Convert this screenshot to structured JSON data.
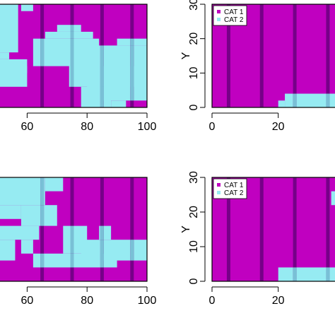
{
  "colors": {
    "cat1": "#c000c0",
    "cat2": "#96ebf2",
    "stripe_on_cat1": "#760088",
    "stripe_on_cat2": "#79c0d6"
  },
  "chart_data": [
    {
      "type": "heatmap",
      "panel": "top-left",
      "xlim": [
        50,
        100
      ],
      "ylim": [
        0,
        30
      ],
      "xticks": [
        60,
        80,
        100
      ],
      "xtick_labels": [
        "60",
        "80",
        "100"
      ],
      "categories": [
        "CAT 1",
        "CAT 2"
      ],
      "stripes_x": [
        65,
        75,
        85,
        95
      ],
      "cat2_regions": [
        {
          "x": [
            50,
            57
          ],
          "y": [
            16,
            30
          ]
        },
        {
          "x": [
            50,
            54
          ],
          "y": [
            14,
            16
          ]
        },
        {
          "x": [
            50,
            60
          ],
          "y": [
            6,
            14
          ]
        },
        {
          "x": [
            50,
            57
          ],
          "y": [
            16,
            16
          ]
        },
        {
          "x": [
            57,
            60
          ],
          "y": [
            10,
            12
          ]
        },
        {
          "x": [
            62,
            84
          ],
          "y": [
            12,
            20
          ]
        },
        {
          "x": [
            66,
            82
          ],
          "y": [
            20,
            22
          ]
        },
        {
          "x": [
            70,
            78
          ],
          "y": [
            22,
            24
          ]
        },
        {
          "x": [
            74,
            100
          ],
          "y": [
            6,
            18
          ]
        },
        {
          "x": [
            80,
            100
          ],
          "y": [
            2,
            12
          ]
        },
        {
          "x": [
            78,
            88
          ],
          "y": [
            0,
            6
          ]
        },
        {
          "x": [
            88,
            93
          ],
          "y": [
            0,
            2
          ]
        },
        {
          "x": [
            90,
            100
          ],
          "y": [
            18,
            20
          ]
        },
        {
          "x": [
            58,
            62
          ],
          "y": [
            28,
            30
          ]
        }
      ]
    },
    {
      "type": "heatmap",
      "panel": "top-right",
      "xlim": [
        0,
        38
      ],
      "ylim": [
        0,
        30
      ],
      "xticks": [
        0,
        20
      ],
      "xtick_labels": [
        "0",
        "20"
      ],
      "yticks": [
        0,
        10,
        20,
        30
      ],
      "ytick_labels": [
        "0",
        "10",
        "20",
        "30"
      ],
      "ylabel": "Y",
      "legend": {
        "position": "top-left",
        "entries": [
          "CAT 1",
          "CAT 2"
        ]
      },
      "stripes_x": [
        5,
        15,
        25,
        35
      ],
      "cat2_regions": [
        {
          "x": [
            22,
            38
          ],
          "y": [
            0,
            4
          ]
        },
        {
          "x": [
            20,
            22
          ],
          "y": [
            0,
            2
          ]
        }
      ]
    },
    {
      "type": "heatmap",
      "panel": "bottom-left",
      "xlim": [
        50,
        100
      ],
      "ylim": [
        0,
        30
      ],
      "xticks": [
        60,
        80,
        100
      ],
      "xtick_labels": [
        "60",
        "80",
        "100"
      ],
      "categories": [
        "CAT 1",
        "CAT 2"
      ],
      "stripes_x": [
        65,
        75,
        85,
        95
      ],
      "cat2_regions": [
        {
          "x": [
            50,
            66
          ],
          "y": [
            22,
            30
          ]
        },
        {
          "x": [
            50,
            58
          ],
          "y": [
            18,
            22
          ]
        },
        {
          "x": [
            50,
            64
          ],
          "y": [
            12,
            16
          ]
        },
        {
          "x": [
            50,
            56
          ],
          "y": [
            6,
            12
          ]
        },
        {
          "x": [
            58,
            70
          ],
          "y": [
            16,
            22
          ]
        },
        {
          "x": [
            66,
            72
          ],
          "y": [
            26,
            30
          ]
        },
        {
          "x": [
            72,
            80
          ],
          "y": [
            8,
            16
          ]
        },
        {
          "x": [
            78,
            100
          ],
          "y": [
            6,
            12
          ]
        },
        {
          "x": [
            62,
            90
          ],
          "y": [
            4,
            8
          ]
        },
        {
          "x": [
            84,
            88
          ],
          "y": [
            12,
            16
          ]
        },
        {
          "x": [
            58,
            62
          ],
          "y": [
            8,
            12
          ]
        }
      ]
    },
    {
      "type": "heatmap",
      "panel": "bottom-right",
      "xlim": [
        0,
        38
      ],
      "ylim": [
        0,
        30
      ],
      "xticks": [
        0,
        20
      ],
      "xtick_labels": [
        "0",
        "20"
      ],
      "yticks": [
        0,
        10,
        20,
        30
      ],
      "ytick_labels": [
        "0",
        "10",
        "20",
        "30"
      ],
      "ylabel": "Y",
      "legend": {
        "position": "top-left",
        "entries": [
          "CAT 1",
          "CAT 2"
        ]
      },
      "stripes_x": [
        5,
        15,
        25,
        35
      ],
      "cat2_regions": [
        {
          "x": [
            20,
            38
          ],
          "y": [
            0,
            4
          ]
        },
        {
          "x": [
            36,
            38
          ],
          "y": [
            22,
            26
          ]
        }
      ]
    }
  ]
}
